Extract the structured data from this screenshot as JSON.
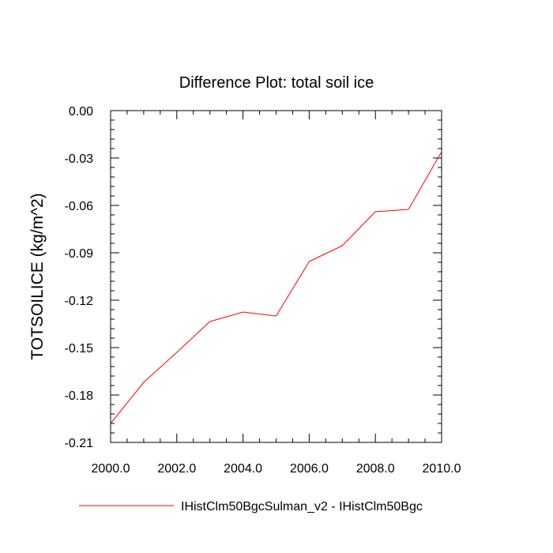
{
  "chart_data": {
    "type": "line",
    "title": "Difference Plot: total soil ice",
    "xlabel": "",
    "ylabel": "TOTSOILICE  (kg/m^2)",
    "xlim": [
      2000,
      2010
    ],
    "ylim": [
      -0.21,
      0
    ],
    "x_ticks": [
      2000,
      2002,
      2004,
      2006,
      2008,
      2010
    ],
    "x_tick_labels": [
      "2000.0",
      "2002.0",
      "2004.0",
      "2006.0",
      "2008.0",
      "2010.0"
    ],
    "y_ticks": [
      0,
      -0.03,
      -0.06,
      -0.09,
      -0.12,
      -0.15,
      -0.18,
      -0.21
    ],
    "y_tick_labels": [
      "0.00",
      "-0.03",
      "-0.06",
      "-0.09",
      "-0.12",
      "-0.15",
      "-0.18",
      "-0.21"
    ],
    "grid": false,
    "legend_position": "bottom",
    "series": [
      {
        "name": "IHistClm50BgcSulman_v2 - IHistClm50Bgc",
        "color": "#ff0000",
        "x": [
          2000,
          2001,
          2002,
          2003,
          2004,
          2005,
          2006,
          2007,
          2008,
          2009,
          2010
        ],
        "values": [
          -0.198,
          -0.172,
          -0.153,
          -0.1335,
          -0.1275,
          -0.13,
          -0.0955,
          -0.0855,
          -0.064,
          -0.0625,
          -0.026
        ]
      }
    ]
  }
}
